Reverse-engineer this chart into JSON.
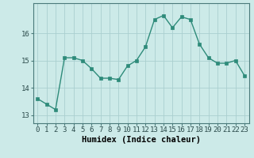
{
  "x": [
    0,
    1,
    2,
    3,
    4,
    5,
    6,
    7,
    8,
    9,
    10,
    11,
    12,
    13,
    14,
    15,
    16,
    17,
    18,
    19,
    20,
    21,
    22,
    23
  ],
  "y": [
    13.6,
    13.4,
    13.2,
    15.1,
    15.1,
    15.0,
    14.7,
    14.35,
    14.35,
    14.3,
    14.8,
    15.0,
    15.5,
    16.5,
    16.65,
    16.2,
    16.6,
    16.5,
    15.6,
    15.1,
    14.9,
    14.9,
    15.0,
    14.45
  ],
  "line_color": "#2e8b7a",
  "marker_color": "#2e8b7a",
  "bg_color": "#cceae8",
  "grid_color_major": "#aacfcf",
  "grid_color_minor": "#c0e0e0",
  "xlabel": "Humidex (Indice chaleur)",
  "ylim": [
    12.7,
    17.1
  ],
  "yticks": [
    13,
    14,
    15,
    16
  ],
  "xticks": [
    0,
    1,
    2,
    3,
    4,
    5,
    6,
    7,
    8,
    9,
    10,
    11,
    12,
    13,
    14,
    15,
    16,
    17,
    18,
    19,
    20,
    21,
    22,
    23
  ],
  "tick_fontsize": 6.5,
  "xlabel_fontsize": 7.5
}
